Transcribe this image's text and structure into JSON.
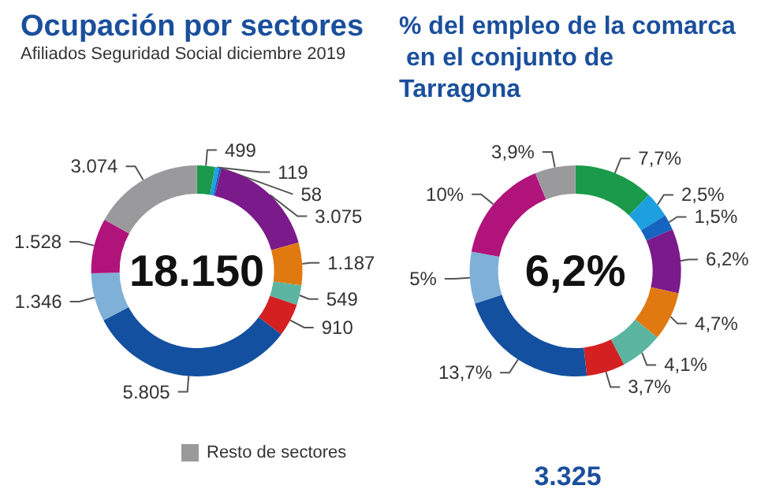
{
  "chart_data": [
    {
      "type": "donut",
      "title": "Ocupación por sectores",
      "subtitle": "Afiliados Seguridad Social diciembre 2019",
      "categories": [
        null,
        null,
        null,
        null,
        null,
        null,
        null,
        null,
        null,
        null,
        "Resto de sectores"
      ],
      "values": [
        499,
        119,
        58,
        3075,
        1187,
        549,
        910,
        5805,
        1346,
        1528,
        3074
      ],
      "value_labels": [
        "499",
        "119",
        "58",
        "3.075",
        "1.187",
        "549",
        "910",
        "5.805",
        "1.346",
        "1.528",
        "3.074"
      ],
      "colors": [
        "#1a9a4a",
        "#1ea0e0",
        "#1565c0",
        "#7b1a8a",
        "#e07a10",
        "#5bb5a0",
        "#d42020",
        "#1450a0",
        "#7fb0d8",
        "#b0147a",
        "#9a9a9c"
      ],
      "annotations": [
        "18.150"
      ],
      "legend": "bottom"
    },
    {
      "type": "donut",
      "title": "% del empleo de la comarca en el conjunto de Tarragona",
      "categories": [
        null,
        null,
        null,
        null,
        null,
        null,
        null,
        null,
        null,
        null,
        null
      ],
      "values": [
        7.7,
        2.5,
        1.5,
        6.2,
        4.7,
        4.1,
        3.7,
        13.7,
        5,
        10,
        3.9
      ],
      "value_labels": [
        "7,7%",
        "2,5%",
        "1,5%",
        "6,2%",
        "4,7%",
        "4,1%",
        "3,7%",
        "13,7%",
        "5%",
        "10%",
        "3,9%"
      ],
      "colors": [
        "#1a9a4a",
        "#1ea0e0",
        "#1565c0",
        "#7b1a8a",
        "#e07a10",
        "#5bb5a0",
        "#d42020",
        "#1450a0",
        "#7fb0d8",
        "#b0147a",
        "#9a9a9c"
      ],
      "annotations": [
        "6,2%",
        "3.325"
      ]
    }
  ]
}
